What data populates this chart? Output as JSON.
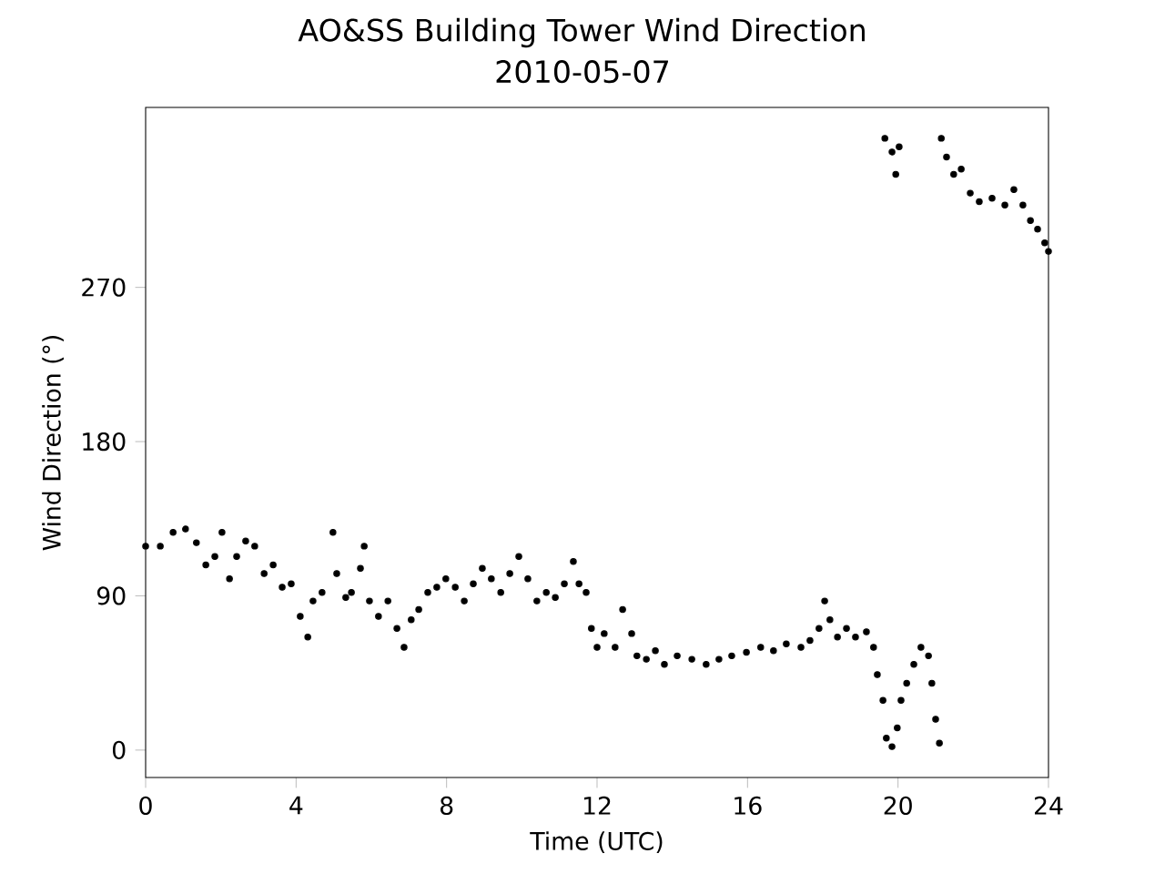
{
  "chart_data": {
    "type": "scatter",
    "title": "AO&SS Building Tower Wind Direction",
    "subtitle": "2010-05-07",
    "xlabel": "Time (UTC)",
    "ylabel": "Wind Direction (°)",
    "xlim": [
      0,
      24
    ],
    "ylim": [
      -16,
      375
    ],
    "xticks": [
      0,
      4,
      8,
      12,
      16,
      20,
      24
    ],
    "yticks": [
      0,
      90,
      180,
      270
    ],
    "grid": false,
    "series": [
      {
        "color": "#000000",
        "x": [
          0,
          0.39,
          0.73,
          1.06,
          1.35,
          1.6,
          1.84,
          2.03,
          2.23,
          2.42,
          2.66,
          2.9,
          3.15,
          3.39,
          3.63,
          3.87,
          4.11,
          4.31,
          4.45,
          4.69,
          4.98,
          5.08,
          5.32,
          5.47,
          5.71,
          5.81,
          5.95,
          6.19,
          6.44,
          6.68,
          6.87,
          7.06,
          7.26,
          7.5,
          7.74,
          7.98,
          8.23,
          8.47,
          8.71,
          8.95,
          9.19,
          9.44,
          9.68,
          9.92,
          10.16,
          10.4,
          10.65,
          10.89,
          11.13,
          11.37,
          11.52,
          11.71,
          11.85,
          12,
          12.19,
          12.48,
          12.68,
          12.92,
          13.06,
          13.31,
          13.55,
          13.79,
          14.13,
          14.52,
          14.9,
          15.24,
          15.58,
          15.97,
          16.35,
          16.69,
          17.03,
          17.42,
          17.66,
          17.9,
          18.05,
          18.19,
          18.39,
          18.63,
          18.87,
          19.16,
          19.35,
          19.45,
          19.6,
          19.69,
          19.84,
          19.98,
          20.08,
          20.23,
          20.42,
          20.61,
          20.81,
          20.9,
          21,
          21.1,
          19.65,
          19.84,
          19.94,
          20.03,
          21.15,
          21.29,
          21.48,
          21.68,
          21.92,
          22.16,
          22.5,
          22.84,
          23.08,
          23.32,
          23.52,
          23.71,
          23.9,
          24
        ],
        "values": [
          119,
          119,
          127,
          129,
          121,
          108,
          113,
          127,
          100,
          113,
          122,
          119,
          103,
          108,
          95,
          97,
          78,
          66,
          87,
          92,
          127,
          103,
          89,
          92,
          106,
          119,
          87,
          78,
          87,
          71,
          60,
          76,
          82,
          92,
          95,
          100,
          95,
          87,
          97,
          106,
          100,
          92,
          103,
          113,
          100,
          87,
          92,
          89,
          97,
          110,
          97,
          92,
          71,
          60,
          68,
          60,
          82,
          68,
          55,
          53,
          58,
          50,
          55,
          53,
          50,
          53,
          55,
          57,
          60,
          58,
          62,
          60,
          64,
          71,
          87,
          76,
          66,
          71,
          66,
          69,
          60,
          44,
          29,
          7,
          2,
          13,
          29,
          39,
          50,
          60,
          55,
          39,
          18,
          4,
          357,
          349,
          336,
          352,
          357,
          346,
          336,
          339,
          325,
          320,
          322,
          318,
          327,
          318,
          309,
          304,
          296,
          291
        ]
      }
    ]
  }
}
